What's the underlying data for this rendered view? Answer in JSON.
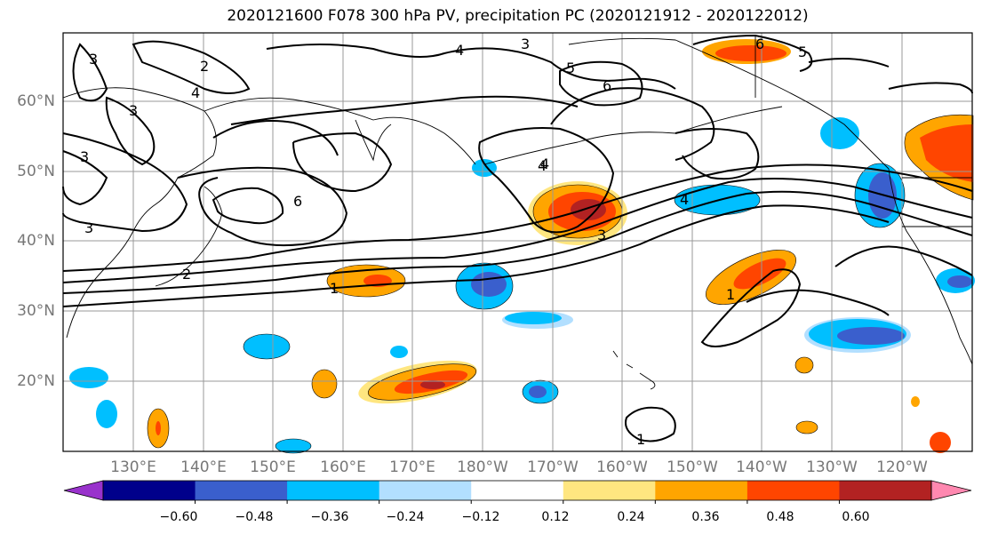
{
  "title": "2020121600 F078 300 hPa PV, precipitation PC (2020121912 - 2020122012)",
  "map": {
    "lat_labels": [
      "60°N",
      "50°N",
      "40°N",
      "30°N",
      "20°N"
    ],
    "lon_labels": [
      "130°E",
      "140°E",
      "150°E",
      "160°E",
      "170°E",
      "180°W",
      "170°W",
      "160°W",
      "150°W",
      "140°W",
      "130°W",
      "120°W"
    ],
    "contour_labels": [
      "3",
      "2",
      "4",
      "3",
      "4",
      "5",
      "6",
      "6",
      "5",
      "3",
      "3",
      "4",
      "6",
      "3",
      "2",
      "1",
      "4",
      "3",
      "1",
      "1",
      "4"
    ],
    "colors": {
      "neg_060": "#9932cc",
      "neg_048": "#00008b",
      "neg_036": "#3a5fcd",
      "neg_024": "#00bfff",
      "neg_012": "#b2dfff",
      "zero": "#ffffff",
      "pos_012": "#ffe680",
      "pos_024": "#ffa500",
      "pos_036": "#ff4500",
      "pos_048": "#b22222",
      "pos_060": "#ff88b0"
    }
  },
  "colorbar": {
    "ticks": [
      "−0.60",
      "−0.48",
      "−0.36",
      "−0.24",
      "−0.12",
      "0.12",
      "0.24",
      "0.36",
      "0.48",
      "0.60"
    ],
    "colors": [
      "#9932cc",
      "#00008b",
      "#3a5fcd",
      "#00bfff",
      "#b2dfff",
      "#ffffff",
      "#ffe680",
      "#ffa500",
      "#ff4500",
      "#b22222",
      "#ff88b0"
    ]
  }
}
